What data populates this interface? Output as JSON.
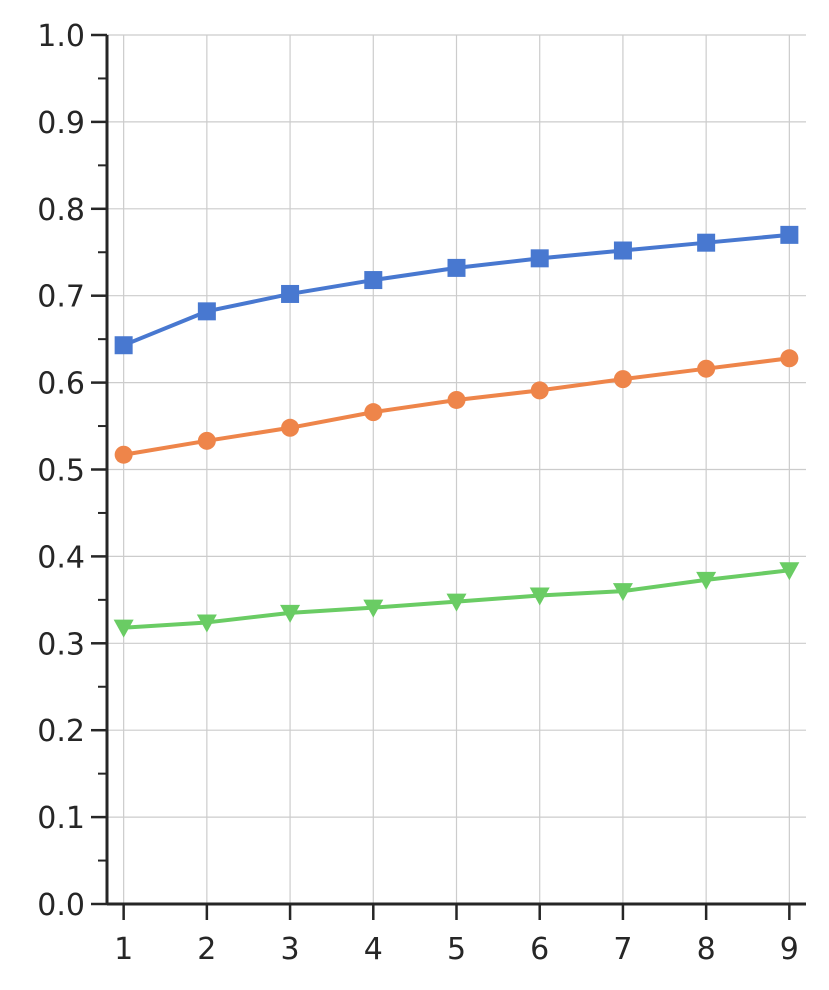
{
  "chart_data": {
    "type": "line",
    "title": "",
    "xlabel": "",
    "ylabel": "",
    "x": [
      1,
      2,
      3,
      4,
      5,
      6,
      7,
      8,
      9
    ],
    "xlim": [
      0.8,
      9.2
    ],
    "ylim": [
      0.0,
      1.0
    ],
    "x_ticks": [
      "1",
      "2",
      "3",
      "4",
      "5",
      "6",
      "7",
      "8",
      "9"
    ],
    "y_ticks": [
      "0.0",
      "0.1",
      "0.2",
      "0.3",
      "0.4",
      "0.5",
      "0.6",
      "0.7",
      "0.8",
      "0.9",
      "1.0"
    ],
    "grid": true,
    "legend": "none",
    "series": [
      {
        "marker": "square",
        "color": "#4878d0",
        "values": [
          0.643,
          0.682,
          0.702,
          0.718,
          0.732,
          0.743,
          0.752,
          0.761,
          0.77
        ]
      },
      {
        "marker": "circle",
        "color": "#ee854a",
        "values": [
          0.517,
          0.533,
          0.548,
          0.566,
          0.58,
          0.591,
          0.604,
          0.616,
          0.628
        ]
      },
      {
        "marker": "triangle-down",
        "color": "#6acc64",
        "values": [
          0.318,
          0.324,
          0.335,
          0.341,
          0.348,
          0.355,
          0.36,
          0.373,
          0.384
        ]
      }
    ]
  }
}
